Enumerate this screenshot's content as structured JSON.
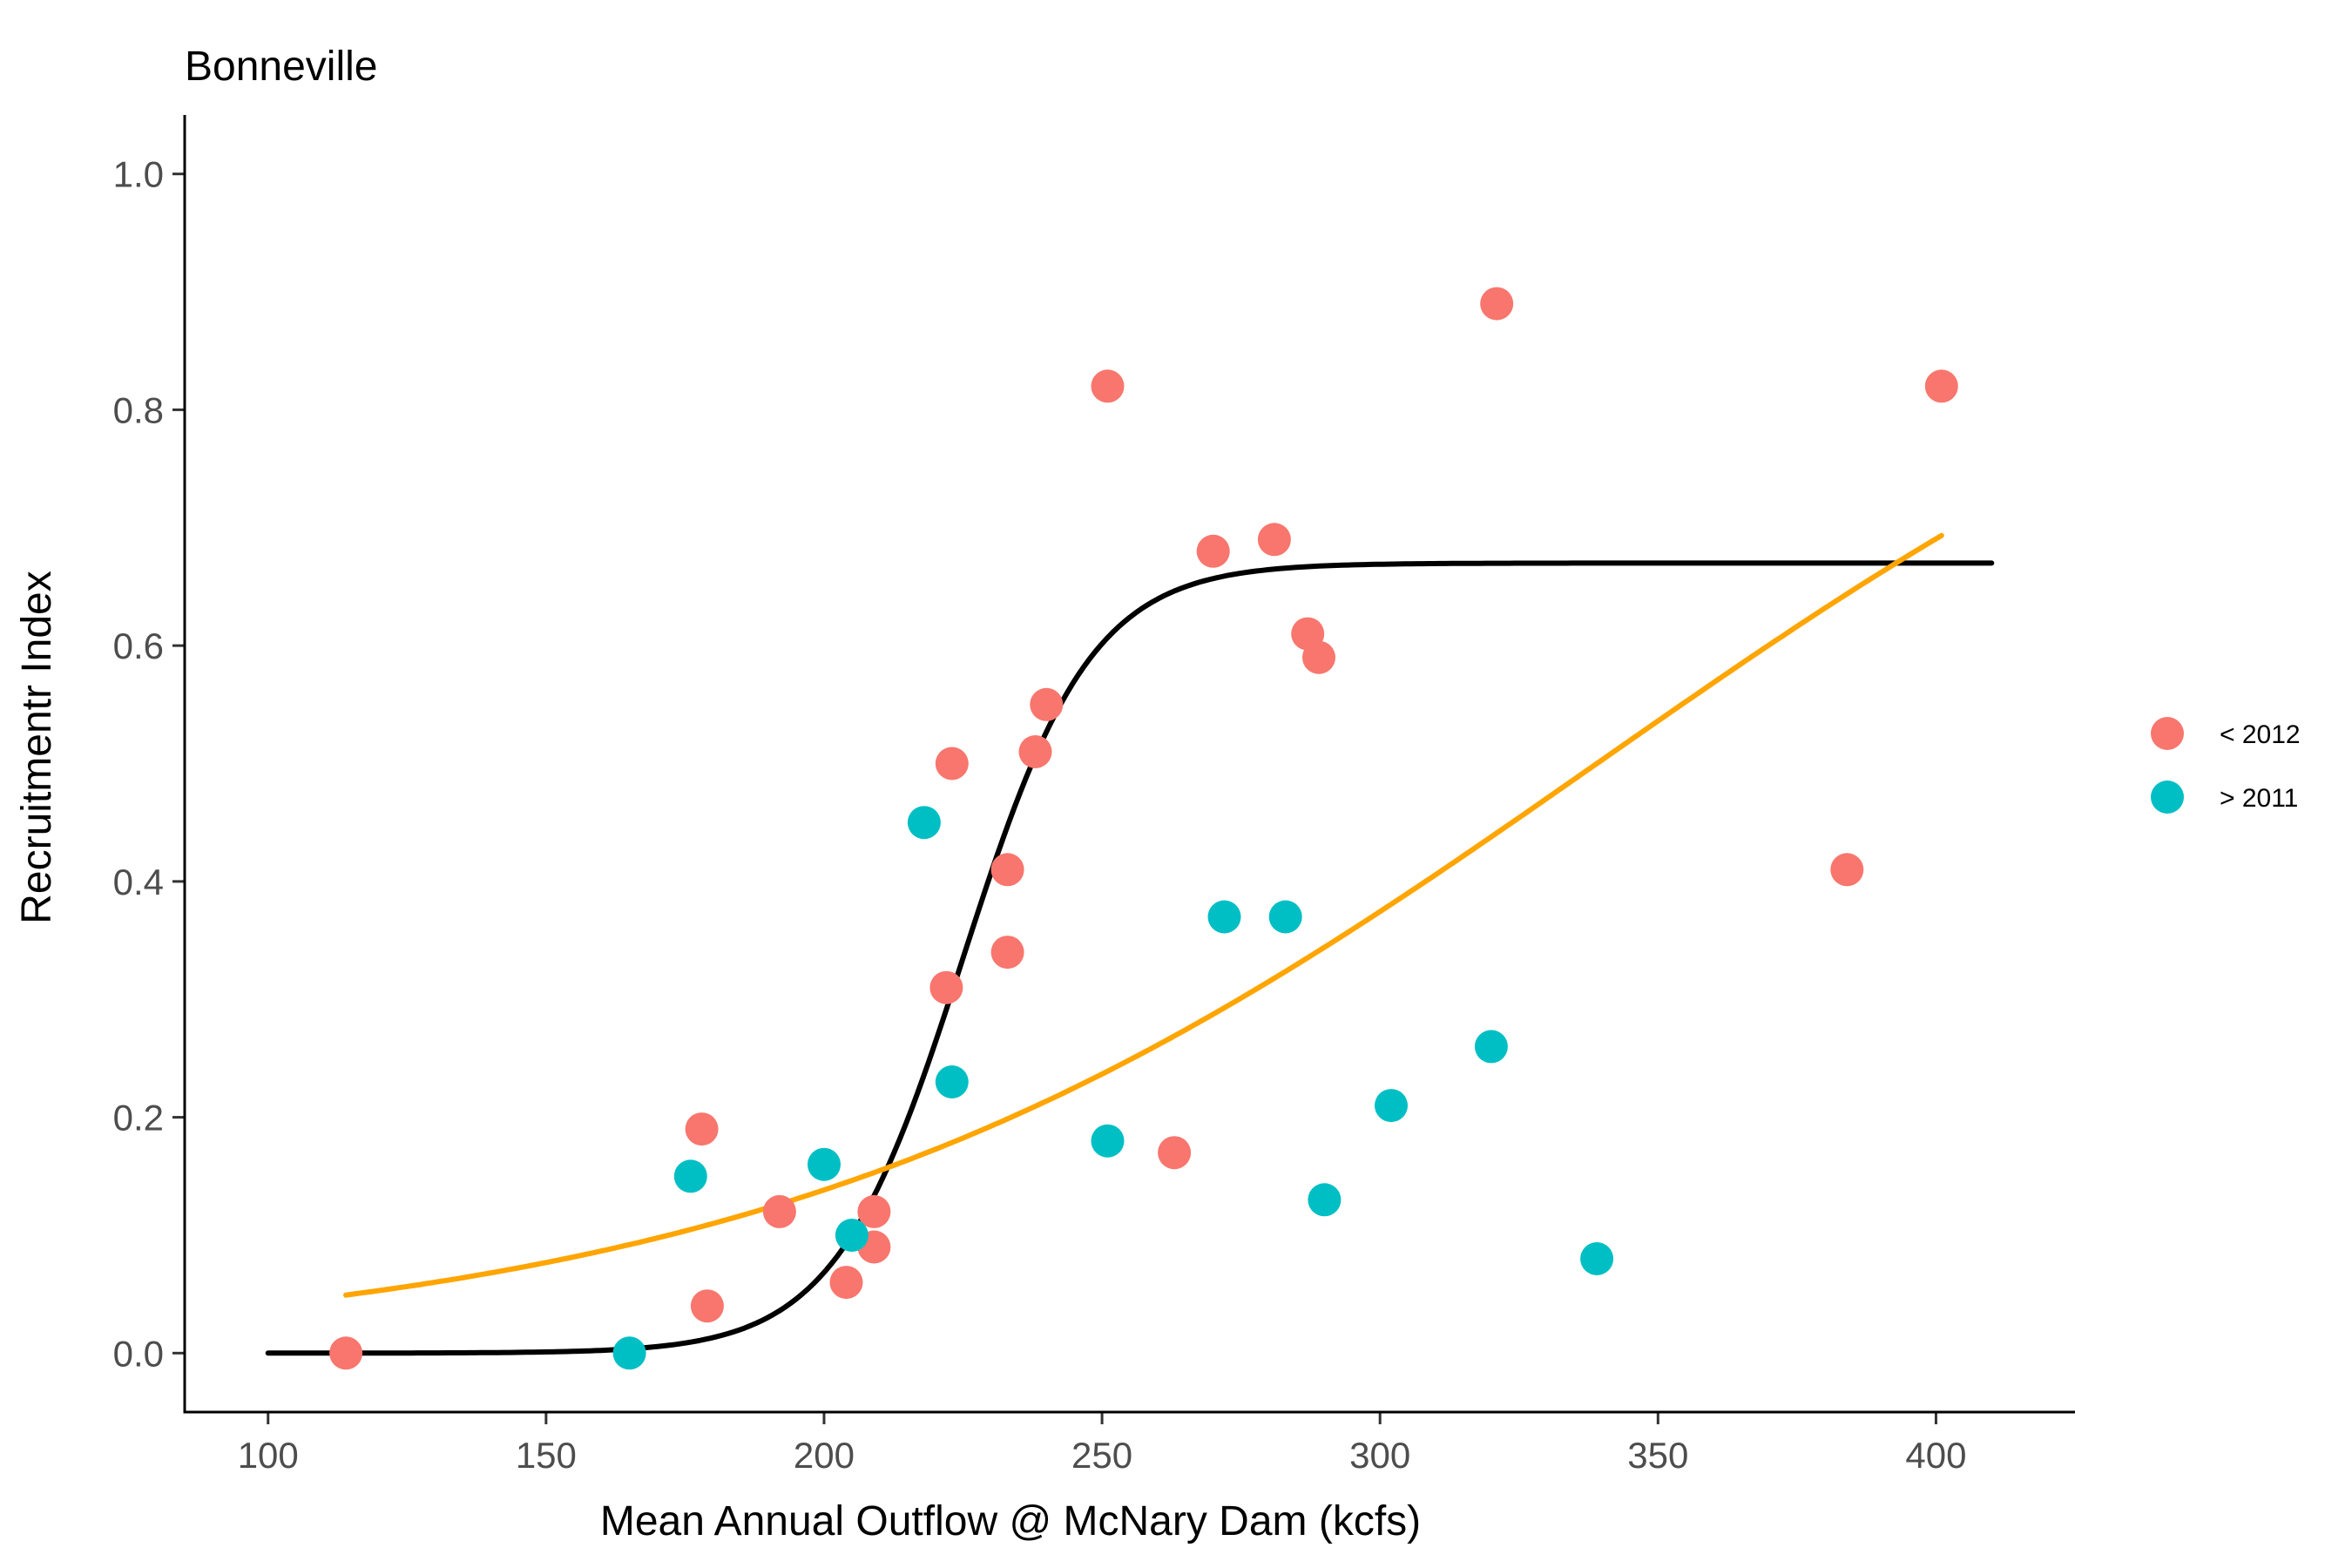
{
  "chart_data": {
    "type": "scatter",
    "title": "Bonneville",
    "xlabel": "Mean Annual Outflow @ McNary Dam (kcfs)",
    "ylabel": "Recruitmentr Index",
    "xlim": [
      85,
      425
    ],
    "ylim": [
      -0.05,
      1.05
    ],
    "x_ticks": [
      100,
      150,
      200,
      250,
      300,
      350,
      400
    ],
    "y_ticks": [
      0.0,
      0.2,
      0.4,
      0.6,
      0.8,
      1.0
    ],
    "x_tick_labels": [
      "100",
      "150",
      "200",
      "250",
      "300",
      "350",
      "400"
    ],
    "y_tick_labels": [
      "0.0",
      "0.2",
      "0.4",
      "0.6",
      "0.8",
      "1.0"
    ],
    "grid": false,
    "legend_position": "right",
    "series": [
      {
        "name": "< 2012",
        "color": "#F8766D",
        "points": [
          [
            114,
            0.0
          ],
          [
            178,
            0.19
          ],
          [
            179,
            0.04
          ],
          [
            192,
            0.12
          ],
          [
            204,
            0.06
          ],
          [
            209,
            0.09
          ],
          [
            209,
            0.12
          ],
          [
            222,
            0.31
          ],
          [
            223,
            0.5
          ],
          [
            233,
            0.34
          ],
          [
            233,
            0.41
          ],
          [
            238,
            0.51
          ],
          [
            240,
            0.55
          ],
          [
            251,
            0.82
          ],
          [
            263,
            0.17
          ],
          [
            270,
            0.68
          ],
          [
            281,
            0.69
          ],
          [
            287,
            0.61
          ],
          [
            289,
            0.59
          ],
          [
            321,
            0.89
          ],
          [
            384,
            0.41
          ],
          [
            401,
            0.82
          ]
        ]
      },
      {
        "name": "> 2011",
        "color": "#00BFC4",
        "points": [
          [
            165,
            0.0
          ],
          [
            176,
            0.15
          ],
          [
            200,
            0.16
          ],
          [
            205,
            0.1
          ],
          [
            218,
            0.45
          ],
          [
            223,
            0.23
          ],
          [
            251,
            0.18
          ],
          [
            272,
            0.37
          ],
          [
            283,
            0.37
          ],
          [
            290,
            0.13
          ],
          [
            302,
            0.21
          ],
          [
            320,
            0.26
          ],
          [
            339,
            0.08
          ]
        ]
      }
    ],
    "fitted_curves": [
      {
        "color": "#000000",
        "shape": "logistic",
        "asymptote": 0.67,
        "midpoint": 225,
        "scale": 11.5,
        "x_range": [
          100,
          410
        ]
      },
      {
        "color": "#FFA500",
        "shape": "logistic",
        "asymptote": 1.0,
        "midpoint": 339,
        "scale": 76,
        "x_range": [
          114,
          401
        ]
      }
    ]
  }
}
